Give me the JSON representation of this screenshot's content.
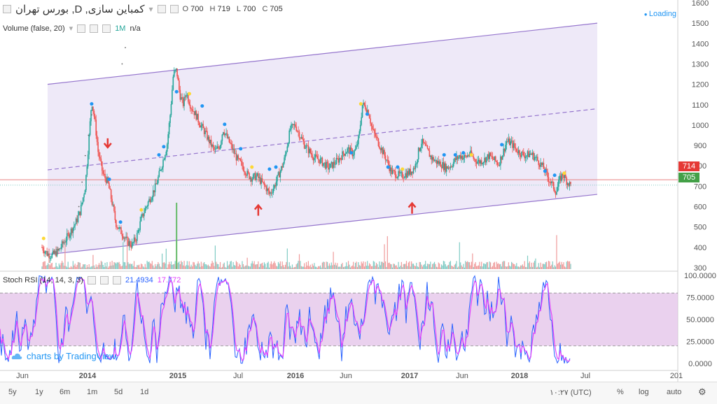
{
  "header": {
    "symbol": "بورس تهران ,D ,کمباین سازی",
    "ohlc": [
      {
        "label": "O",
        "value": "700"
      },
      {
        "label": "H",
        "value": "719"
      },
      {
        "label": "L",
        "value": "700"
      },
      {
        "label": "C",
        "value": "705"
      }
    ],
    "loading": "Loading"
  },
  "volume_header": {
    "name": "Volume (false, 20)",
    "value": "1M",
    "extra": "n/a"
  },
  "rsi_header": {
    "name": "Stoch RSI (14, 14, 3, 3)",
    "k": "21.4934",
    "d": "17.772"
  },
  "brand": "charts by TradingView",
  "price_labels": {
    "high": "714",
    "last": "705"
  },
  "colors": {
    "up": "#26a69a",
    "down": "#ef5350",
    "channel_line": "#9575cd",
    "channel_fill": "#e8e1f5",
    "rsi_k": "#2962ff",
    "rsi_d": "#e040fb",
    "rsi_band": "#e1bee7",
    "arrow": "#e53935",
    "marker_blue": "#2196f3",
    "marker_yellow": "#fdd835"
  },
  "bottom_bar": {
    "ranges": [
      "5y",
      "1y",
      "6m",
      "1m",
      "5d",
      "1d"
    ],
    "time": "۱۰:۲۷ (UTC)",
    "percent": "%",
    "log": "log",
    "auto": "auto"
  },
  "chart_data": [
    {
      "type": "line",
      "title": "",
      "x_ticks": [
        "Jun",
        "2014",
        "2015",
        "Jul",
        "2016",
        "Jun",
        "2017",
        "Jun",
        "2018",
        "Jul",
        "201"
      ],
      "y_ticks": [
        "300",
        "400",
        "500",
        "600",
        "700",
        "800",
        "900",
        "1000",
        "1100",
        "1200",
        "1300",
        "1400",
        "1500",
        "1600"
      ],
      "ylim": [
        250,
        1610
      ],
      "price_series": [
        [
          0,
          400
        ],
        [
          6,
          370
        ],
        [
          12,
          360
        ],
        [
          20,
          380
        ],
        [
          28,
          430
        ],
        [
          36,
          480
        ],
        [
          42,
          520
        ],
        [
          48,
          580
        ],
        [
          54,
          700
        ],
        [
          58,
          900
        ],
        [
          62,
          1120
        ],
        [
          66,
          1020
        ],
        [
          70,
          870
        ],
        [
          76,
          760
        ],
        [
          82,
          720
        ],
        [
          88,
          610
        ],
        [
          92,
          520
        ],
        [
          96,
          490
        ],
        [
          100,
          470
        ],
        [
          106,
          430
        ],
        [
          112,
          410
        ],
        [
          118,
          450
        ],
        [
          124,
          540
        ],
        [
          130,
          600
        ],
        [
          136,
          650
        ],
        [
          142,
          700
        ],
        [
          148,
          780
        ],
        [
          152,
          840
        ],
        [
          156,
          900
        ],
        [
          160,
          1050
        ],
        [
          164,
          1250
        ],
        [
          168,
          1270
        ],
        [
          172,
          1150
        ],
        [
          176,
          1100
        ],
        [
          180,
          1160
        ],
        [
          186,
          1090
        ],
        [
          192,
          1050
        ],
        [
          198,
          1000
        ],
        [
          204,
          960
        ],
        [
          210,
          910
        ],
        [
          216,
          870
        ],
        [
          222,
          900
        ],
        [
          226,
          980
        ],
        [
          232,
          930
        ],
        [
          238,
          880
        ],
        [
          244,
          830
        ],
        [
          250,
          800
        ],
        [
          256,
          760
        ],
        [
          262,
          740
        ],
        [
          268,
          750
        ],
        [
          274,
          720
        ],
        [
          280,
          690
        ],
        [
          284,
          660
        ],
        [
          290,
          700
        ],
        [
          296,
          760
        ],
        [
          302,
          820
        ],
        [
          306,
          900
        ],
        [
          310,
          980
        ],
        [
          316,
          1000
        ],
        [
          322,
          950
        ],
        [
          328,
          900
        ],
        [
          334,
          870
        ],
        [
          340,
          840
        ],
        [
          346,
          830
        ],
        [
          352,
          810
        ],
        [
          358,
          790
        ],
        [
          364,
          810
        ],
        [
          370,
          830
        ],
        [
          376,
          860
        ],
        [
          382,
          880
        ],
        [
          388,
          860
        ],
        [
          392,
          880
        ],
        [
          396,
          950
        ],
        [
          400,
          1100
        ],
        [
          404,
          1090
        ],
        [
          408,
          1060
        ],
        [
          412,
          980
        ],
        [
          418,
          930
        ],
        [
          424,
          880
        ],
        [
          430,
          830
        ],
        [
          436,
          770
        ],
        [
          442,
          760
        ],
        [
          448,
          750
        ],
        [
          454,
          760
        ],
        [
          460,
          770
        ],
        [
          466,
          800
        ],
        [
          470,
          870
        ],
        [
          474,
          920
        ],
        [
          480,
          880
        ],
        [
          486,
          840
        ],
        [
          492,
          820
        ],
        [
          498,
          810
        ],
        [
          504,
          790
        ],
        [
          510,
          800
        ],
        [
          516,
          830
        ],
        [
          522,
          850
        ],
        [
          528,
          840
        ],
        [
          534,
          860
        ],
        [
          540,
          830
        ],
        [
          546,
          820
        ],
        [
          552,
          830
        ],
        [
          558,
          850
        ],
        [
          564,
          830
        ],
        [
          570,
          810
        ],
        [
          576,
          870
        ],
        [
          580,
          920
        ],
        [
          586,
          910
        ],
        [
          592,
          880
        ],
        [
          598,
          860
        ],
        [
          604,
          850
        ],
        [
          610,
          860
        ],
        [
          616,
          840
        ],
        [
          620,
          820
        ],
        [
          626,
          790
        ],
        [
          632,
          740
        ],
        [
          638,
          700
        ],
        [
          642,
          670
        ],
        [
          646,
          730
        ],
        [
          650,
          760
        ],
        [
          656,
          720
        ],
        [
          660,
          705
        ]
      ],
      "gap_segment": [
        [
          46,
          600
        ],
        [
          50,
          720
        ],
        [
          54,
          850
        ],
        [
          58,
          950
        ],
        [
          62,
          1050
        ],
        [
          100,
          1300
        ],
        [
          104,
          1380
        ]
      ],
      "channel": {
        "upper": [
          [
            0,
            1200
          ],
          [
            660,
            1500
          ]
        ],
        "lower": [
          [
            0,
            365
          ],
          [
            660,
            660
          ]
        ],
        "mid": [
          [
            0,
            780
          ],
          [
            660,
            1080
          ]
        ]
      },
      "horizontal_level": 714,
      "last_price": 705,
      "arrows": [
        {
          "at": 82,
          "value": 880,
          "direction": "down"
        },
        {
          "at": 270,
          "value": 610,
          "direction": "up"
        },
        {
          "at": 462,
          "value": 620,
          "direction": "up"
        }
      ],
      "markers": [
        [
          2,
          430
        ],
        [
          62,
          1090
        ],
        [
          84,
          720
        ],
        [
          98,
          510
        ],
        [
          124,
          570
        ],
        [
          146,
          840
        ],
        [
          152,
          880
        ],
        [
          168,
          1150
        ],
        [
          184,
          1140
        ],
        [
          200,
          1080
        ],
        [
          228,
          990
        ],
        [
          248,
          870
        ],
        [
          262,
          780
        ],
        [
          284,
          770
        ],
        [
          292,
          780
        ],
        [
          386,
          850
        ],
        [
          398,
          1090
        ],
        [
          406,
          1040
        ],
        [
          432,
          780
        ],
        [
          444,
          780
        ],
        [
          450,
          770
        ],
        [
          502,
          840
        ],
        [
          516,
          840
        ],
        [
          526,
          850
        ],
        [
          536,
          840
        ],
        [
          574,
          890
        ],
        [
          628,
          760
        ],
        [
          640,
          740
        ],
        [
          652,
          750
        ]
      ]
    },
    {
      "type": "bar",
      "title": "Volume (false, 20)",
      "value_label": "1M",
      "note": "volume bars under the price chart"
    },
    {
      "type": "line",
      "title": "Stoch RSI (14, 14, 3, 3)",
      "y_ticks": [
        "0.0000",
        "25.0000",
        "50.0000",
        "75.0000",
        "100.0000"
      ],
      "ylim": [
        0,
        100
      ],
      "bands": [
        20,
        80
      ],
      "latest": {
        "k": 21.4934,
        "d": 17.772
      }
    }
  ]
}
